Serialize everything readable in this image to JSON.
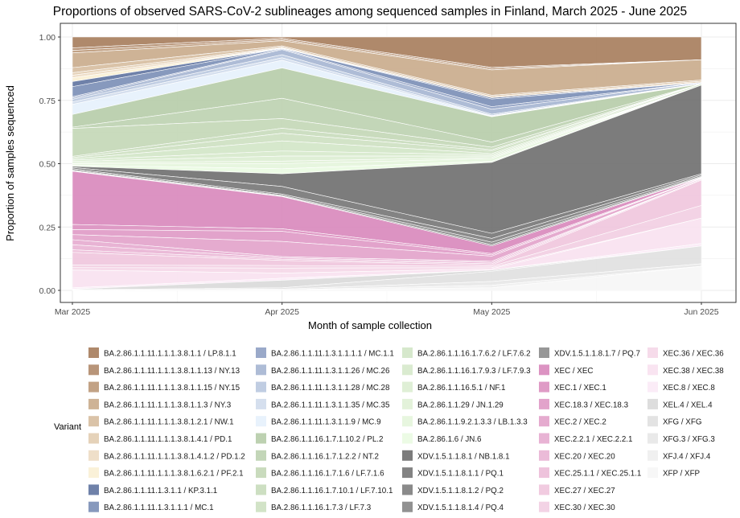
{
  "chart_data": {
    "type": "area",
    "stacked": true,
    "title": "Proportions of observed SARS-CoV-2 sublineages among sequenced samples in Finland, March 2025 - June 2025",
    "xlabel": "Month of sample collection",
    "ylabel": "Proportion of samples sequenced",
    "categories": [
      "Mar 2025",
      "Apr 2025",
      "May 2025",
      "Jun 2025"
    ],
    "y_ticks": [
      "0.00",
      "0.25",
      "0.50",
      "0.75",
      "1.00"
    ],
    "ylim": [
      0,
      1
    ],
    "grid": true,
    "legend_title": "Variant",
    "legend_position": "bottom",
    "series": [
      {
        "name": "BA.2.86.1.1.11.1.1.1.3.8.1.1 / LP.8.1.1",
        "color": "#a67c5b",
        "values": [
          0.043,
          0.005,
          0.12,
          0.09
        ]
      },
      {
        "name": "BA.2.86.1.1.11.1.1.1.3.8.1.1.13 / NY.13",
        "color": "#b08a6a",
        "values": [
          0.01,
          0.005,
          0.005,
          0
        ]
      },
      {
        "name": "BA.2.86.1.1.11.1.1.1.3.8.1.1.15 / NY.15",
        "color": "#bb9878",
        "values": [
          0.01,
          0.005,
          0.005,
          0
        ]
      },
      {
        "name": "BA.2.86.1.1.11.1.1.1.3.8.1.1.3 / NY.3",
        "color": "#c9ab8b",
        "values": [
          0.058,
          0.02,
          0.1,
          0.08
        ]
      },
      {
        "name": "BA.2.86.1.1.11.1.1.1.3.8.1.2.1 / NW.1",
        "color": "#d6bd9e",
        "values": [
          0.02,
          0.005,
          0.005,
          0.005
        ]
      },
      {
        "name": "BA.2.86.1.1.11.1.1.1.3.8.1.4.1 / PD.1",
        "color": "#e2cdb1",
        "values": [
          0.01,
          0.003,
          0.005,
          0.005
        ]
      },
      {
        "name": "BA.2.86.1.1.11.1.1.1.3.8.1.4.1.2 / PD.1.2",
        "color": "#eddcc3",
        "values": [
          0.01,
          0.002,
          0,
          0
        ]
      },
      {
        "name": "BA.2.86.1.1.11.1.1.1.3.8.1.6.2.1 / PF.2.1",
        "color": "#faf0d4",
        "values": [
          0.015,
          0,
          0,
          0
        ]
      },
      {
        "name": "BA.2.86.1.1.11.1.3.1.1 / KP.3.1.1",
        "color": "#5f73a0",
        "values": [
          0.02,
          0,
          0.005,
          0
        ]
      },
      {
        "name": "BA.2.86.1.1.11.1.3.1.1.1 / MC.1",
        "color": "#7a8eb6",
        "values": [
          0.04,
          0.002,
          0.03,
          0
        ]
      },
      {
        "name": "BA.2.86.1.1.11.1.3.1.1.1.1 / MC.1.1",
        "color": "#8fa0c3",
        "values": [
          0.005,
          0.003,
          0.01,
          0
        ]
      },
      {
        "name": "BA.2.86.1.1.11.1.3.1.1.26 / MC.26",
        "color": "#a5b5d2",
        "values": [
          0.005,
          0.02,
          0.02,
          0.003
        ]
      },
      {
        "name": "BA.2.86.1.1.11.1.3.1.1.28 / MC.28",
        "color": "#b9c8df",
        "values": [
          0.01,
          0.012,
          0.005,
          0
        ]
      },
      {
        "name": "BA.2.86.1.1.11.1.3.1.1.35 / MC.35",
        "color": "#d0dcec",
        "values": [
          0.01,
          0.01,
          0.003,
          0
        ]
      },
      {
        "name": "BA.2.86.1.1.11.1.3.1.1.9 / MC.9",
        "color": "#e6f1fc",
        "values": [
          0.04,
          0.03,
          0.002,
          0.002
        ]
      },
      {
        "name": "BA.2.86.1.1.16.1.7.1.10.2 / PL.2",
        "color": "#b6cca8",
        "values": [
          0.05,
          0.12,
          0.1,
          0
        ]
      },
      {
        "name": "BA.2.86.1.1.16.1.7.1.2.2 / NT.2",
        "color": "#bdd2b0",
        "values": [
          0.005,
          0.08,
          0.02,
          0
        ]
      },
      {
        "name": "BA.2.86.1.1.16.1.7.1.6 / LF.7.1.6",
        "color": "#c3d7b6",
        "values": [
          0.11,
          0.038,
          0.01,
          0
        ]
      },
      {
        "name": "BA.2.86.1.1.16.1.7.10.1 / LF.7.10.1",
        "color": "#c8dbbb",
        "values": [
          0.005,
          0.02,
          0.005,
          0
        ]
      },
      {
        "name": "BA.2.86.1.1.16.1.7.3 / LF.7.3",
        "color": "#cde0c1",
        "values": [
          0.005,
          0.03,
          0.01,
          0
        ]
      },
      {
        "name": "BA.2.86.1.1.16.1.7.6.2 / LF.7.6.2",
        "color": "#d2e5c6",
        "values": [
          0.005,
          0.04,
          0.005,
          0.005
        ]
      },
      {
        "name": "BA.2.86.1.1.16.1.7.9.3 / LF.7.9.3",
        "color": "#d6e9cb",
        "values": [
          0.005,
          0.02,
          0.005,
          0
        ]
      },
      {
        "name": "BA.2.86.1.1.16.5.1 / NF.1",
        "color": "#dbedd1",
        "values": [
          0.005,
          0.02,
          0.005,
          0
        ]
      },
      {
        "name": "BA.2.86.1.1.29 / JN.1.29",
        "color": "#e0f1d6",
        "values": [
          0.004,
          0.01,
          0.005,
          0
        ]
      },
      {
        "name": "BA.2.86.1.1.9.2.1.3.3 / LB.1.3.3",
        "color": "#e4f5db",
        "values": [
          0.005,
          0.02,
          0.01,
          0
        ]
      },
      {
        "name": "BA.2.86.1.6 / JN.6",
        "color": "#eafbe2",
        "values": [
          0.005,
          0.02,
          0.005,
          0
        ]
      },
      {
        "name": "XDV.1.5.1.1.8.1 / NB.1.8.1",
        "color": "#6e6e6e",
        "values": [
          0.005,
          0.05,
          0.28,
          0.35
        ]
      },
      {
        "name": "XDV.1.5.1.1.8.1.1 / PQ.1",
        "color": "#767676",
        "values": [
          0.005,
          0.03,
          0.02,
          0.005
        ]
      },
      {
        "name": "XDV.1.5.1.1.8.1.2 / PQ.2",
        "color": "#7d7d7d",
        "values": [
          0.005,
          0.005,
          0.015,
          0.005
        ]
      },
      {
        "name": "XDV.1.5.1.1.8.1.4 / PQ.4",
        "color": "#858585",
        "values": [
          0.003,
          0.003,
          0.01,
          0.003
        ]
      },
      {
        "name": "XDV.1.5.1.1.8.1.7 / PQ.7",
        "color": "#8c8c8c",
        "values": [
          0.002,
          0.002,
          0.005,
          0.002
        ]
      },
      {
        "name": "XEC / XEC",
        "color": "#d887bb",
        "values": [
          0.21,
          0.127,
          0.03,
          0.002
        ]
      },
      {
        "name": "XEC.1 / XEC.1",
        "color": "#db90c0",
        "values": [
          0.02,
          0.01,
          0.005,
          0.002
        ]
      },
      {
        "name": "XEC.18.3 / XEC.18.3",
        "color": "#df99c5",
        "values": [
          0.02,
          0.04,
          0.005,
          0
        ]
      },
      {
        "name": "XEC.2 / XEC.2",
        "color": "#e2a2ca",
        "values": [
          0.02,
          0.06,
          0.02,
          0.003
        ]
      },
      {
        "name": "XEC.2.2.1 / XEC.2.2.1",
        "color": "#e6abcf",
        "values": [
          0.02,
          0.005,
          0.005,
          0
        ]
      },
      {
        "name": "XEC.20 / XEC.20",
        "color": "#e9b4d4",
        "values": [
          0.02,
          0.005,
          0.005,
          0
        ]
      },
      {
        "name": "XEC.25.1.1 / XEC.25.1.1",
        "color": "#ecbdd8",
        "values": [
          0.01,
          0.005,
          0.005,
          0.003
        ]
      },
      {
        "name": "XEC.27 / XEC.27",
        "color": "#efc5dd",
        "values": [
          0.05,
          0.02,
          0.005,
          0.1
        ]
      },
      {
        "name": "XEC.30 / XEC.30",
        "color": "#f2cee2",
        "values": [
          0.01,
          0.01,
          0.005,
          0.05
        ]
      },
      {
        "name": "XEC.36 / XEC.36",
        "color": "#f5d7e8",
        "values": [
          0.01,
          0.02,
          0.005,
          0
        ]
      },
      {
        "name": "XEC.38 / XEC.38",
        "color": "#f8e1ef",
        "values": [
          0.07,
          0.02,
          0.005,
          0.1
        ]
      },
      {
        "name": "XEC.8 / XEC.8",
        "color": "#fbeaf6",
        "values": [
          0.005,
          0.008,
          0,
          0.01
        ]
      },
      {
        "name": "XEL.4 / XEL.4",
        "color": "#d9d9d9",
        "values": [
          0.002,
          0.03,
          0.005,
          0
        ]
      },
      {
        "name": "XFG / XFG",
        "color": "#e0e0e0",
        "values": [
          0.002,
          0.005,
          0.04,
          0.07
        ]
      },
      {
        "name": "XFG.3 / XFG.3",
        "color": "#e7e7e7",
        "values": [
          0.001,
          0.003,
          0.015,
          0.01
        ]
      },
      {
        "name": "XFJ.4 / XFJ.4",
        "color": "#eeeeee",
        "values": [
          0,
          0,
          0.01,
          0
        ]
      },
      {
        "name": "XFP / XFP",
        "color": "#f6f6f6",
        "values": [
          0,
          0.002,
          0.01,
          0.095
        ]
      }
    ]
  }
}
